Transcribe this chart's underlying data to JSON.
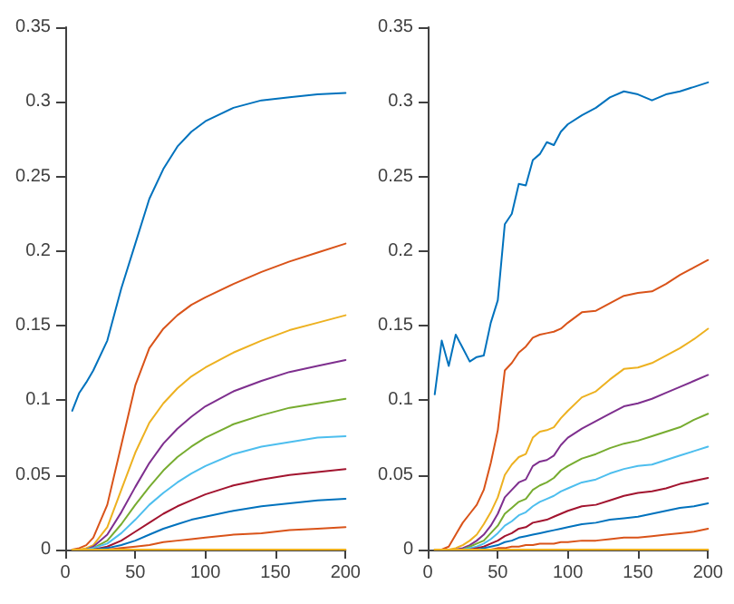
{
  "chart_data": [
    {
      "type": "line",
      "x": [
        5,
        10,
        15,
        20,
        30,
        40,
        50,
        60,
        70,
        80,
        90,
        100,
        120,
        140,
        160,
        180,
        200
      ],
      "xlim": [
        0,
        200
      ],
      "xticks": [
        0,
        50,
        100,
        150,
        200
      ],
      "ylim": [
        0,
        0.35
      ],
      "yticks": [
        0,
        0.05,
        0.1,
        0.15,
        0.2,
        0.25,
        0.3,
        0.35
      ],
      "grid": false,
      "marker": "none",
      "line_style": "solid",
      "series": [
        {
          "color": "#0072bd",
          "values": [
            0.093,
            0.105,
            0.112,
            0.12,
            0.14,
            0.175,
            0.205,
            0.235,
            0.255,
            0.27,
            0.28,
            0.287,
            0.296,
            0.301,
            0.303,
            0.305,
            0.306
          ]
        },
        {
          "color": "#d95319",
          "values": [
            0,
            0.001,
            0.003,
            0.008,
            0.03,
            0.07,
            0.11,
            0.135,
            0.148,
            0.157,
            0.164,
            0.169,
            0.178,
            0.186,
            0.193,
            0.199,
            0.205
          ]
        },
        {
          "color": "#edb120",
          "values": [
            0,
            0,
            0.001,
            0.003,
            0.015,
            0.04,
            0.065,
            0.085,
            0.098,
            0.108,
            0.116,
            0.122,
            0.132,
            0.14,
            0.147,
            0.152,
            0.157
          ]
        },
        {
          "color": "#7e2f8e",
          "values": [
            0,
            0,
            0,
            0.002,
            0.01,
            0.025,
            0.042,
            0.058,
            0.071,
            0.081,
            0.089,
            0.096,
            0.106,
            0.113,
            0.119,
            0.123,
            0.127
          ]
        },
        {
          "color": "#77ac30",
          "values": [
            null,
            null,
            0,
            0.001,
            0.006,
            0.017,
            0.03,
            0.042,
            0.053,
            0.062,
            0.069,
            0.075,
            0.084,
            0.09,
            0.095,
            0.098,
            0.101
          ]
        },
        {
          "color": "#4dbeee",
          "values": [
            null,
            null,
            0,
            0.001,
            0.004,
            0.011,
            0.02,
            0.03,
            0.038,
            0.045,
            0.051,
            0.056,
            0.064,
            0.069,
            0.072,
            0.075,
            0.076
          ]
        },
        {
          "color": "#a2142f",
          "values": [
            null,
            null,
            0,
            0,
            0.002,
            0.006,
            0.012,
            0.018,
            0.024,
            0.029,
            0.033,
            0.037,
            0.043,
            0.047,
            0.05,
            0.052,
            0.054
          ]
        },
        {
          "color": "#0072bd",
          "values": [
            null,
            null,
            0,
            0,
            0.001,
            0.003,
            0.006,
            0.01,
            0.014,
            0.017,
            0.02,
            0.022,
            0.026,
            0.029,
            0.031,
            0.033,
            0.034
          ]
        },
        {
          "color": "#d95319",
          "values": [
            null,
            null,
            0,
            0,
            0,
            0.001,
            0.002,
            0.003,
            0.005,
            0.006,
            0.007,
            0.008,
            0.01,
            0.011,
            0.013,
            0.014,
            0.015
          ]
        },
        {
          "color": "#edb120",
          "values": [
            0,
            0,
            0,
            0,
            0,
            0,
            0,
            0,
            0,
            0,
            0,
            0,
            0,
            0,
            0,
            0,
            0
          ]
        }
      ]
    },
    {
      "type": "line",
      "x": [
        5,
        10,
        15,
        20,
        25,
        30,
        35,
        40,
        45,
        50,
        55,
        60,
        65,
        70,
        75,
        80,
        85,
        90,
        95,
        100,
        110,
        120,
        130,
        140,
        150,
        160,
        170,
        180,
        190,
        200
      ],
      "xlim": [
        0,
        200
      ],
      "xticks": [
        0,
        50,
        100,
        150,
        200
      ],
      "ylim": [
        0,
        0.35
      ],
      "yticks": [
        0,
        0.05,
        0.1,
        0.15,
        0.2,
        0.25,
        0.3,
        0.35
      ],
      "grid": false,
      "marker": "none",
      "line_style": "solid",
      "series": [
        {
          "color": "#0072bd",
          "values": [
            0.104,
            0.14,
            0.123,
            0.144,
            0.135,
            0.126,
            0.129,
            0.13,
            0.152,
            0.167,
            0.218,
            0.225,
            0.245,
            0.244,
            0.261,
            0.265,
            0.273,
            0.271,
            0.28,
            0.285,
            0.291,
            0.296,
            0.303,
            0.307,
            0.305,
            0.301,
            0.305,
            0.307,
            0.31,
            0.313
          ]
        },
        {
          "color": "#d95319",
          "values": [
            0,
            0,
            0.002,
            0.01,
            0.018,
            0.024,
            0.03,
            0.04,
            0.058,
            0.08,
            0.12,
            0.125,
            0.132,
            0.136,
            0.142,
            0.144,
            0.145,
            0.146,
            0.148,
            0.152,
            0.159,
            0.16,
            0.165,
            0.17,
            0.172,
            0.173,
            0.178,
            0.184,
            0.189,
            0.194
          ]
        },
        {
          "color": "#edb120",
          "values": [
            0,
            0,
            0,
            0.001,
            0.003,
            0.006,
            0.01,
            0.017,
            0.025,
            0.035,
            0.05,
            0.057,
            0.062,
            0.064,
            0.075,
            0.079,
            0.08,
            0.082,
            0.088,
            0.093,
            0.102,
            0.106,
            0.114,
            0.121,
            0.122,
            0.125,
            0.13,
            0.135,
            0.141,
            0.148
          ]
        },
        {
          "color": "#7e2f8e",
          "values": [
            null,
            null,
            null,
            0,
            0.001,
            0.003,
            0.006,
            0.01,
            0.016,
            0.024,
            0.035,
            0.04,
            0.045,
            0.047,
            0.056,
            0.059,
            0.06,
            0.063,
            0.07,
            0.075,
            0.081,
            0.086,
            0.091,
            0.096,
            0.098,
            0.101,
            0.105,
            0.109,
            0.113,
            0.117
          ]
        },
        {
          "color": "#77ac30",
          "values": [
            null,
            null,
            null,
            null,
            0,
            0.002,
            0.004,
            0.006,
            0.011,
            0.016,
            0.024,
            0.028,
            0.032,
            0.034,
            0.04,
            0.043,
            0.045,
            0.048,
            0.053,
            0.056,
            0.061,
            0.064,
            0.068,
            0.071,
            0.073,
            0.076,
            0.079,
            0.082,
            0.087,
            0.091
          ]
        },
        {
          "color": "#4dbeee",
          "values": [
            null,
            null,
            null,
            null,
            0,
            0.001,
            0.002,
            0.004,
            0.007,
            0.011,
            0.016,
            0.019,
            0.023,
            0.025,
            0.029,
            0.032,
            0.034,
            0.036,
            0.039,
            0.041,
            0.045,
            0.047,
            0.051,
            0.054,
            0.056,
            0.057,
            0.06,
            0.063,
            0.066,
            0.069
          ]
        },
        {
          "color": "#a2142f",
          "values": [
            null,
            null,
            null,
            null,
            null,
            0,
            0.001,
            0.002,
            0.004,
            0.006,
            0.009,
            0.011,
            0.014,
            0.015,
            0.018,
            0.019,
            0.02,
            0.022,
            0.024,
            0.026,
            0.029,
            0.03,
            0.033,
            0.036,
            0.038,
            0.039,
            0.041,
            0.044,
            0.046,
            0.048
          ]
        },
        {
          "color": "#0072bd",
          "values": [
            null,
            null,
            null,
            null,
            null,
            null,
            0,
            0.001,
            0.002,
            0.003,
            0.005,
            0.006,
            0.008,
            0.009,
            0.01,
            0.011,
            0.012,
            0.013,
            0.014,
            0.015,
            0.017,
            0.018,
            0.02,
            0.021,
            0.022,
            0.024,
            0.026,
            0.028,
            0.029,
            0.031
          ]
        },
        {
          "color": "#d95319",
          "values": [
            null,
            null,
            null,
            null,
            null,
            null,
            null,
            null,
            0,
            0.001,
            0.001,
            0.002,
            0.002,
            0.003,
            0.003,
            0.004,
            0.004,
            0.004,
            0.005,
            0.005,
            0.006,
            0.006,
            0.007,
            0.008,
            0.008,
            0.009,
            0.01,
            0.011,
            0.012,
            0.014
          ]
        },
        {
          "color": "#edb120",
          "values": [
            0,
            0,
            0,
            0,
            0,
            0,
            0,
            0,
            0,
            0,
            0,
            0,
            0,
            0,
            0,
            0,
            0,
            0,
            0,
            0,
            0,
            0,
            0,
            0,
            0,
            0,
            0,
            0,
            0,
            0
          ]
        }
      ]
    }
  ]
}
